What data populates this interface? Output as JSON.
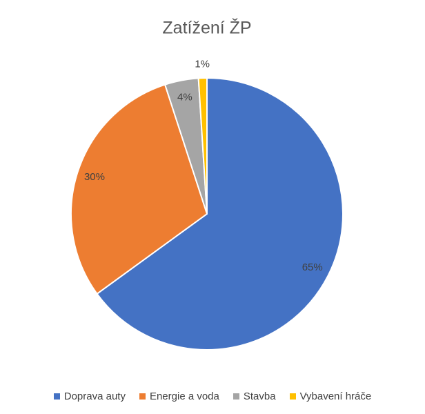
{
  "chart_data": {
    "type": "pie",
    "title": "Zatížení ŽP",
    "categories": [
      "Doprava auty",
      "Energie a voda",
      "Stavba",
      "Vybavení hráče"
    ],
    "values": [
      65,
      30,
      4,
      1
    ],
    "value_labels": [
      "65%",
      "30%",
      "4%",
      "1%"
    ],
    "colors": [
      "#4472c4",
      "#ed7d31",
      "#a5a5a5",
      "#ffc000"
    ]
  }
}
